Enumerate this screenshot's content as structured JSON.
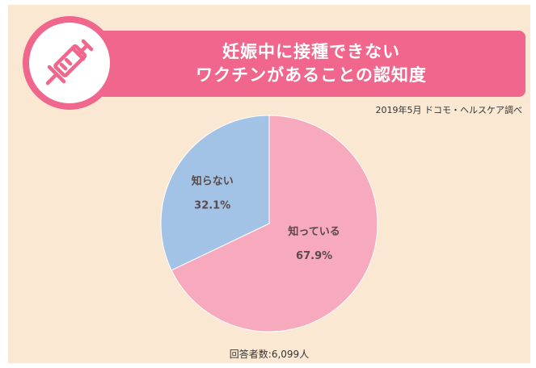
{
  "header": {
    "title_line1": "妊娠中に接種できない",
    "title_line2": "ワクチンがあることの認知度",
    "source": "2019年5月 ドコモ・ヘルスケア調べ",
    "icon": "syringe-icon"
  },
  "chart_data": {
    "type": "pie",
    "slices": [
      {
        "label": "知っている",
        "value": 67.9,
        "display": "67.9%",
        "color": "#f7a9be"
      },
      {
        "label": "知らない",
        "value": 32.1,
        "display": "32.1%",
        "color": "#a3c3e6"
      }
    ],
    "start": "top",
    "direction": "clockwise"
  },
  "footer": {
    "respondents": "回答者数:6,099人"
  },
  "colors": {
    "background": "#fbe8d3",
    "accent": "#f0668c"
  }
}
